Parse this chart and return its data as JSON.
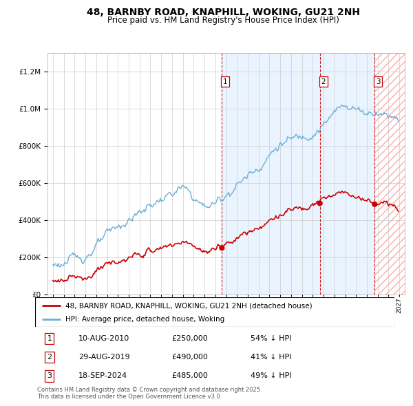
{
  "title1": "48, BARNBY ROAD, KNAPHILL, WOKING, GU21 2NH",
  "title2": "Price paid vs. HM Land Registry's House Price Index (HPI)",
  "legend_property": "48, BARNBY ROAD, KNAPHILL, WOKING, GU21 2NH (detached house)",
  "legend_hpi": "HPI: Average price, detached house, Woking",
  "sale_labels": [
    "1",
    "2",
    "3"
  ],
  "sale_dates": [
    "10-AUG-2010",
    "29-AUG-2019",
    "18-SEP-2024"
  ],
  "sale_prices": [
    250000,
    490000,
    485000
  ],
  "sale_pct": [
    "54% ↓ HPI",
    "41% ↓ HPI",
    "49% ↓ HPI"
  ],
  "sale_years": [
    2010.61,
    2019.66,
    2024.72
  ],
  "footer": "Contains HM Land Registry data © Crown copyright and database right 2025.\nThis data is licensed under the Open Government Licence v3.0.",
  "hpi_color": "#6baed6",
  "property_color": "#cc0000",
  "vline_color": "#cc0000",
  "bg_shade_color": "#ddeeff",
  "ylim_max": 1300000,
  "xlim_min": 1994.5,
  "xlim_max": 2027.5
}
